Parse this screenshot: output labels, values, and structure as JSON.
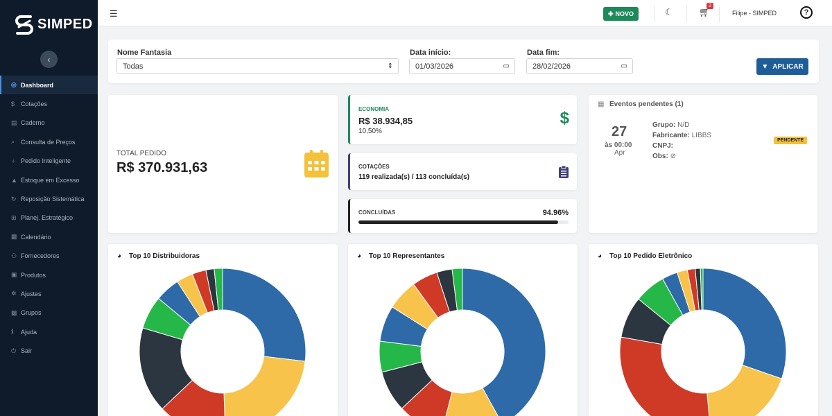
{
  "brand": {
    "name": "SIMPED"
  },
  "sidebar": {
    "items": [
      {
        "label": "Dashboard",
        "icon": "gauge-icon",
        "glyph": "◎",
        "active": true
      },
      {
        "label": "Cotações",
        "icon": "dollar-icon",
        "glyph": "$"
      },
      {
        "label": "Caderno",
        "icon": "book-icon",
        "glyph": "▤"
      },
      {
        "label": "Consulta de Preços",
        "icon": "search-icon",
        "glyph": "⌕"
      },
      {
        "label": "Pedido Inteligente",
        "icon": "lightbulb-icon",
        "glyph": "♁"
      },
      {
        "label": "Estoque em Excesso",
        "icon": "warning-icon",
        "glyph": "▲"
      },
      {
        "label": "Reposição Sistemática",
        "icon": "sync-icon",
        "glyph": "↻"
      },
      {
        "label": "Planej. Estratégico",
        "icon": "sitemap-icon",
        "glyph": "⊞"
      },
      {
        "label": "Calendário",
        "icon": "calendar-icon",
        "glyph": "▦"
      },
      {
        "label": "Fornecedores",
        "icon": "users-icon",
        "glyph": "⚇"
      },
      {
        "label": "Produtos",
        "icon": "box-icon",
        "glyph": "▣"
      },
      {
        "label": "Ajustes",
        "icon": "gear-icon",
        "glyph": "✲"
      },
      {
        "label": "Grupos",
        "icon": "grid-icon",
        "glyph": "▩"
      },
      {
        "label": "Ajuda",
        "icon": "info-icon",
        "glyph": "ℹ"
      },
      {
        "label": "Sair",
        "icon": "power-icon",
        "glyph": "⏻"
      }
    ]
  },
  "topbar": {
    "novo_label": "NOVO",
    "cart_count": "2",
    "user": "Filipe - SIMPED",
    "help": "?"
  },
  "filters": {
    "nome_label": "Nome Fantasia",
    "nome_value": "Todas",
    "inicio_label": "Data início:",
    "inicio_value": "01/03/2026",
    "fim_label": "Data fim:",
    "fim_value": "28/02/2026",
    "apply_label": "APLICAR"
  },
  "stats": {
    "total_label": "TOTAL PEDIDO",
    "total_value": "R$ 370.931,63",
    "economia_label": "ECONOMIA",
    "economia_value": "R$ 38.934,85",
    "economia_pct": "10,50%",
    "cotacoes_label": "COTAÇÕES",
    "cotacoes_value": "119 realizada(s) / 113 concluída(s)",
    "concluidas_label": "CONCLUÍDAS",
    "concluidas_pct": "94.96%",
    "concluidas_fraction": 0.9496
  },
  "events": {
    "title": "Eventos pendentes (1)",
    "day": "27",
    "time": "às 00:00",
    "month": "Apr",
    "grupo_label": "Grupo:",
    "grupo_value": "N/D",
    "fabricante_label": "Fabricante:",
    "fabricante_value": "LIBBS",
    "cnpj_label": "CNPJ:",
    "obs_label": "Obs:",
    "obs_value": "⊘",
    "status": "PENDENTE"
  },
  "colors": {
    "blue": "#2e6aa8",
    "yellow": "#f8c34a",
    "red": "#cf3a27",
    "dark": "#2c3640",
    "green": "#25b848",
    "accent": "#1f5d99",
    "success": "#1e8a5a"
  },
  "chart_data": [
    {
      "type": "pie",
      "title": "Top 10 Distribuidoras",
      "values": [
        25,
        21,
        12.5,
        15.5,
        6,
        4.5,
        3,
        2.5,
        1.5,
        1.5
      ],
      "colors": [
        "#2e6aa8",
        "#f8c34a",
        "#cf3a27",
        "#2c3640",
        "#25b848",
        "#2e6aa8",
        "#f8c34a",
        "#cf3a27",
        "#2c3640",
        "#25b848"
      ]
    },
    {
      "type": "pie",
      "title": "Top 10 Representantes",
      "values": [
        42,
        12,
        9,
        8,
        6,
        7,
        6,
        5,
        3,
        2
      ],
      "colors": [
        "#2e6aa8",
        "#f8c34a",
        "#cf3a27",
        "#2c3640",
        "#25b848",
        "#2e6aa8",
        "#f8c34a",
        "#cf3a27",
        "#2c3640",
        "#25b848"
      ]
    },
    {
      "type": "pie",
      "title": "Top 10 Pedido Eletrônico",
      "values": [
        30,
        18,
        29,
        8,
        6,
        3,
        2,
        1.5,
        1,
        0.5
      ],
      "colors": [
        "#2e6aa8",
        "#f8c34a",
        "#cf3a27",
        "#2c3640",
        "#25b848",
        "#2e6aa8",
        "#f8c34a",
        "#cf3a27",
        "#2c3640",
        "#25b848"
      ]
    }
  ]
}
